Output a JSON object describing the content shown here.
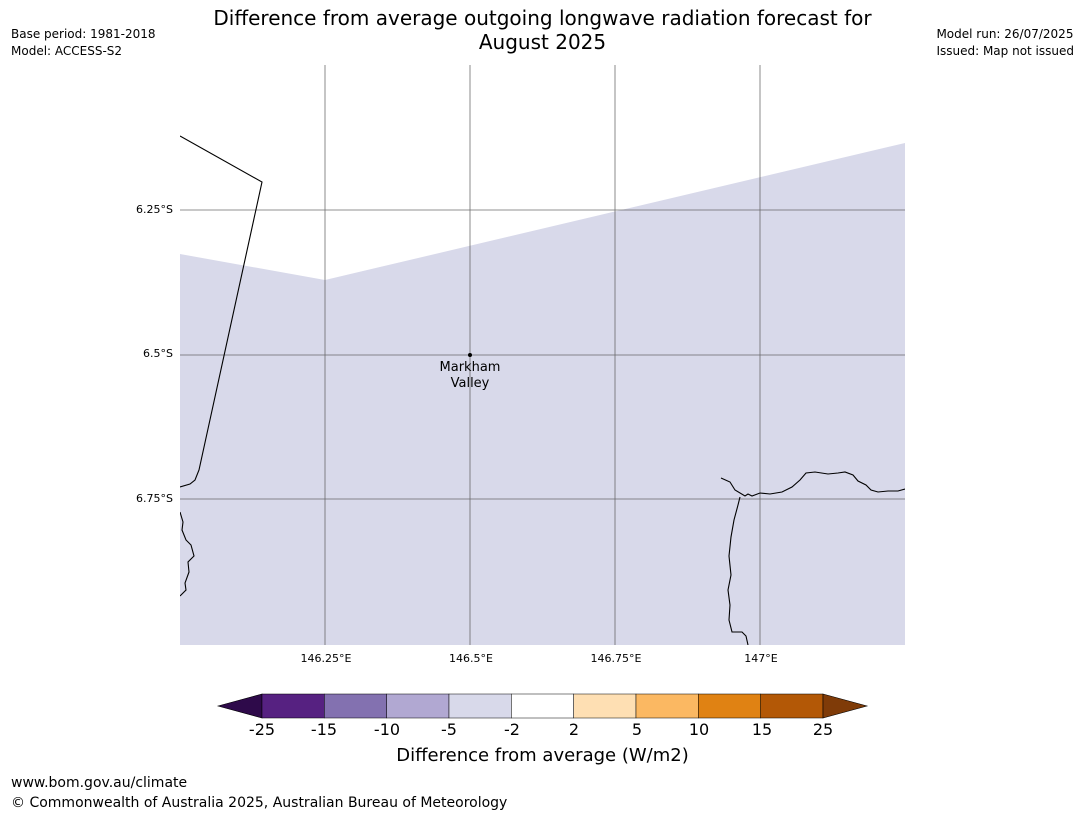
{
  "title_line1": "Difference from average outgoing longwave radiation forecast for",
  "title_line2": "August 2025",
  "meta_left": {
    "base_period": "Base period: 1981-2018",
    "model": "Model: ACCESS-S2"
  },
  "meta_right": {
    "model_run": "Model run: 26/07/2025",
    "issued": "Issued: Map not issued"
  },
  "map": {
    "lat_labels": [
      "6.25°S",
      "6.5°S",
      "6.75°S"
    ],
    "lon_labels": [
      "146.25°E",
      "146.5°E",
      "146.75°E",
      "147°E"
    ],
    "place": {
      "line1": "Markham",
      "line2": "Valley"
    },
    "shading_color": "#d8d9ea",
    "grid_color": "#555555"
  },
  "colorbar": {
    "ticks": [
      "-25",
      "-15",
      "-10",
      "-5",
      "-2",
      "2",
      "5",
      "10",
      "15",
      "25"
    ],
    "colors": [
      "#562181",
      "#8371b0",
      "#b1a8d2",
      "#d8d9ea",
      "#ffffff",
      "#fedfb3",
      "#fbb862",
      "#e08213",
      "#b35806"
    ],
    "under_color": "#2e0a4a",
    "over_color": "#7f3b08",
    "label": "Difference from average (W/m2)"
  },
  "footer": {
    "url": "www.bom.gov.au/climate",
    "copyright": "© Commonwealth of Australia 2025, Australian Bureau of Meteorology"
  }
}
